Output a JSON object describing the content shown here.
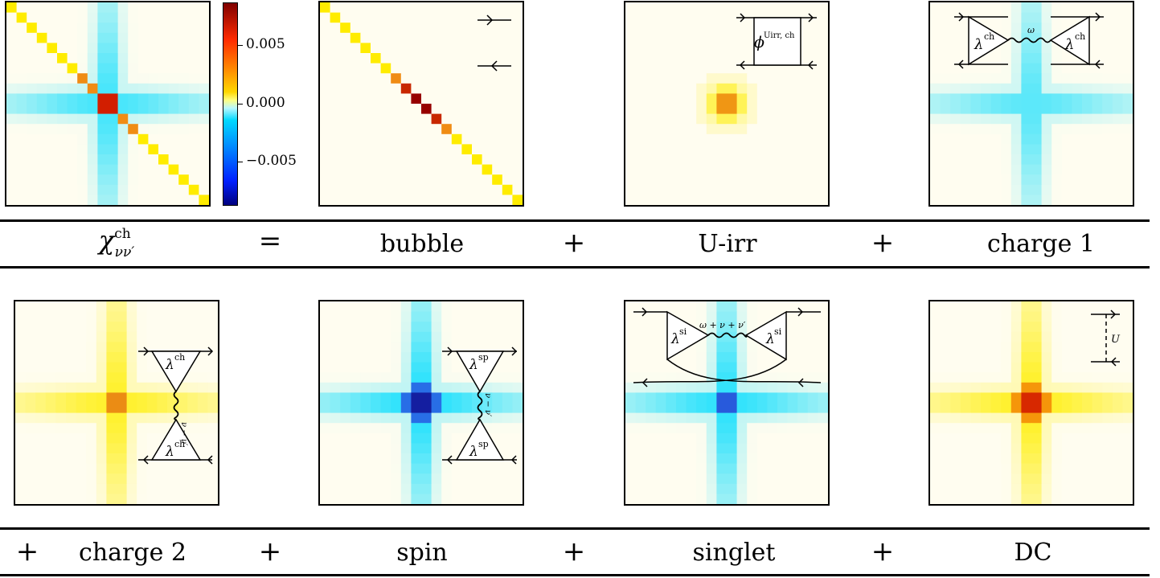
{
  "colorbar": {
    "ticks": [
      "0.005",
      "0.000",
      "−0.005"
    ]
  },
  "row1": {
    "lhs_symbol": "χ",
    "lhs_sup": "ch",
    "lhs_sub": "νν′",
    "equals": "=",
    "labels": [
      "bubble",
      "U-irr",
      "charge 1"
    ],
    "plus": "+"
  },
  "row2": {
    "labels": [
      "charge 2",
      "spin",
      "singlet",
      "DC"
    ],
    "plus": "+"
  },
  "diagrams": {
    "uirr": "ϕ",
    "uirr_sup": "Uirr, ch",
    "charge1_left": "λ",
    "charge1_left_sup": "ch",
    "charge1_right": "λ",
    "charge1_right_sup": "ch",
    "charge1_line": "ω",
    "charge2_top": "λ",
    "charge2_top_sup": "ch",
    "charge2_bottom": "λ",
    "charge2_bottom_sup": "ch",
    "charge2_line": "ν − ν′",
    "spin_top": "λ",
    "spin_top_sup": "sp",
    "spin_bottom": "λ",
    "spin_bottom_sup": "sp",
    "spin_line": "ν − ν′",
    "singlet_left": "λ",
    "singlet_left_sup": "si",
    "singlet_right": "λ",
    "singlet_right_sup": "si",
    "singlet_line": "ω + ν + ν′",
    "dc_line": "U"
  },
  "colors": {
    "background": "#fffdf0",
    "yellow": "#ffee00",
    "cyan": "#00dcff",
    "red": "#c81400"
  }
}
